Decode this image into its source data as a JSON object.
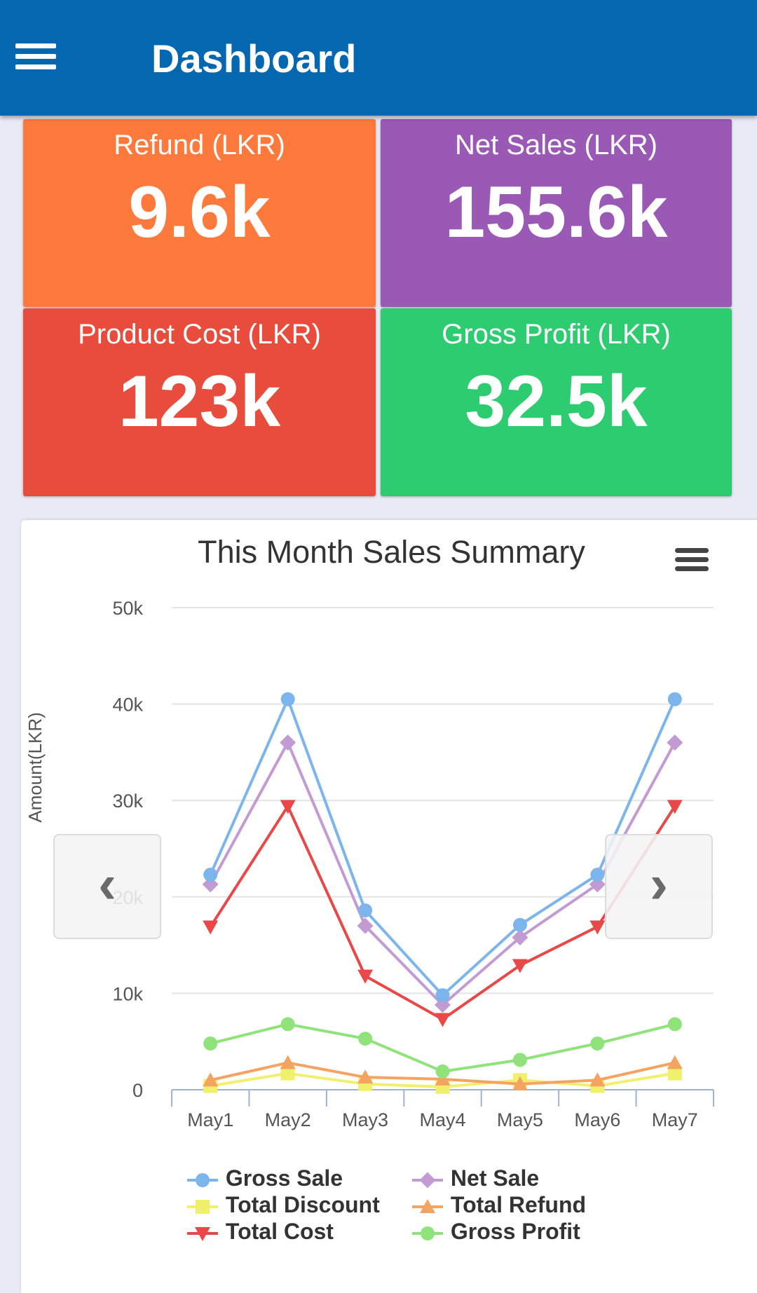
{
  "appbar": {
    "title": "Dashboard",
    "menu_icon": "hamburger-menu-icon"
  },
  "tiles": [
    {
      "label": "Refund (LKR)",
      "value": "9.6k",
      "color": "#fe793c"
    },
    {
      "label": "Net Sales (LKR)",
      "value": "155.6k",
      "color": "#9b59b6"
    },
    {
      "label": "Product Cost (LKR)",
      "value": "123k",
      "color": "#e74c3c"
    },
    {
      "label": "Gross Profit (LKR)",
      "value": "32.5k",
      "color": "#2ecc71"
    }
  ],
  "chart": {
    "menu_icon": "chart-menu-icon",
    "prev_icon": "chevron-left-icon",
    "next_icon": "chevron-right-icon"
  },
  "chart_data": {
    "type": "line",
    "title": "This Month Sales Summary",
    "ylabel": "Amount(LKR)",
    "xlabel": "",
    "categories": [
      "May1",
      "May2",
      "May3",
      "May4",
      "May5",
      "May6",
      "May7"
    ],
    "ylim": [
      0,
      50000
    ],
    "yticks": [
      "0",
      "10k",
      "20k",
      "30k",
      "40k",
      "50k"
    ],
    "grid": true,
    "legend_position": "bottom",
    "series": [
      {
        "name": "Gross Sale",
        "color": "#7cb5ec",
        "marker": "circle",
        "values": [
          22300,
          40500,
          18600,
          9800,
          17100,
          22300,
          40500
        ]
      },
      {
        "name": "Net Sale",
        "color": "#c39bd3",
        "marker": "diamond",
        "values": [
          21300,
          36000,
          17000,
          8800,
          15800,
          21300,
          36000
        ]
      },
      {
        "name": "Total Discount",
        "color": "#f0f06c",
        "marker": "square",
        "values": [
          400,
          1700,
          600,
          300,
          1000,
          400,
          1700
        ]
      },
      {
        "name": "Total Refund",
        "color": "#f4a460",
        "marker": "triangle",
        "values": [
          1000,
          2800,
          1300,
          1100,
          600,
          1000,
          2800
        ]
      },
      {
        "name": "Total Cost",
        "color": "#e84848",
        "marker": "triangle-down",
        "values": [
          16900,
          29400,
          11800,
          7300,
          12900,
          16900,
          29400
        ]
      },
      {
        "name": "Gross Profit",
        "color": "#90e37a",
        "marker": "circle",
        "values": [
          4800,
          6800,
          5300,
          1900,
          3100,
          4800,
          6800
        ]
      }
    ]
  }
}
